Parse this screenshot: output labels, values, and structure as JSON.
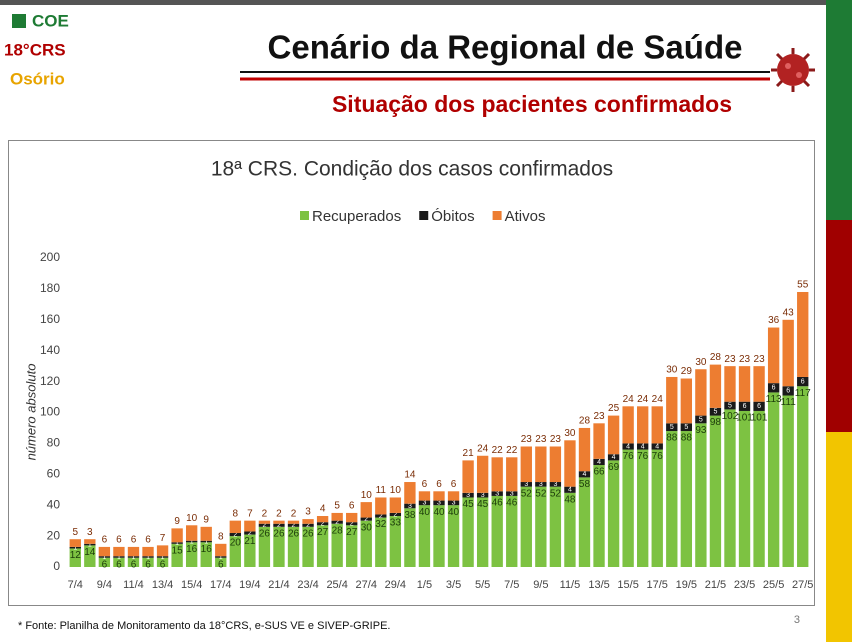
{
  "header": {
    "coe": "COE",
    "crs": "18°CRS",
    "city": "Osório",
    "title": "Cenário da Regional de Saúde",
    "subtitle": "Situação dos pacientes confirmados"
  },
  "footer": {
    "source": "* Fonte: Planilha de Monitoramento da 18°CRS, e-SUS VE e SIVEP-GRIPE.",
    "page": "3"
  },
  "chart_data": {
    "type": "stacked-bar",
    "title": "18ª CRS. Condição dos casos confirmados",
    "y_label": "número absoluto",
    "categories": [
      "7/4",
      null,
      "9/4",
      null,
      "11/4",
      null,
      "13/4",
      null,
      "15/4",
      null,
      "17/4",
      null,
      "19/4",
      null,
      "21/4",
      null,
      "23/4",
      null,
      "25/4",
      null,
      "27/4",
      null,
      "29/4",
      null,
      "1/5",
      null,
      "3/5",
      null,
      "5/5",
      null,
      "7/5",
      null,
      "9/5",
      null,
      "11/5",
      null,
      "13/5",
      null,
      "15/5",
      null,
      "17/5",
      null,
      "19/5",
      null,
      "21/5",
      null,
      "23/5",
      null,
      "25/5",
      null,
      "27/5"
    ],
    "series": [
      {
        "name": "Recuperados",
        "color": "#7dc242",
        "values": [
          12,
          14,
          6,
          6,
          6,
          6,
          6,
          15,
          16,
          16,
          6,
          20,
          21,
          26,
          26,
          26,
          26,
          27,
          28,
          27,
          30,
          32,
          33,
          38,
          40,
          40,
          40,
          45,
          45,
          46,
          46,
          52,
          52,
          52,
          48,
          58,
          66,
          69,
          76,
          76,
          76,
          88,
          88,
          93,
          98,
          102,
          101,
          101,
          113,
          111,
          117
        ]
      },
      {
        "name": "Óbitos",
        "color": "#1a1a1a",
        "values": [
          1,
          1,
          1,
          1,
          1,
          1,
          1,
          1,
          1,
          1,
          1,
          2,
          2,
          2,
          2,
          2,
          2,
          2,
          2,
          2,
          2,
          2,
          2,
          3,
          3,
          3,
          3,
          3,
          3,
          3,
          3,
          3,
          3,
          3,
          4,
          4,
          4,
          4,
          4,
          4,
          4,
          5,
          5,
          5,
          5,
          5,
          6,
          6,
          6,
          6,
          6
        ]
      },
      {
        "name": "Ativos",
        "color": "#ed7d31",
        "values": [
          5,
          3,
          6,
          6,
          6,
          6,
          7,
          9,
          10,
          9,
          8,
          8,
          7,
          2,
          2,
          2,
          3,
          4,
          5,
          6,
          10,
          11,
          10,
          14,
          6,
          6,
          6,
          21,
          24,
          22,
          22,
          23,
          23,
          23,
          30,
          28,
          23,
          25,
          24,
          24,
          24,
          30,
          29,
          30,
          28,
          23,
          23,
          23,
          36,
          43,
          55
        ]
      }
    ],
    "ylim": [
      0,
      200
    ],
    "yticks": [
      0,
      20,
      40,
      60,
      80,
      100,
      120,
      140,
      160,
      180,
      200
    ],
    "grid": false,
    "legend": "top"
  }
}
